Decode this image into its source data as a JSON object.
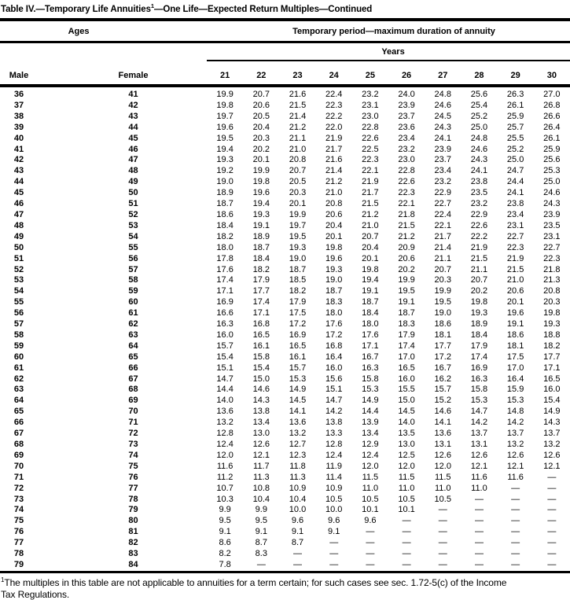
{
  "title": {
    "pre": "Table IV.—Temporary Life Annuities",
    "sup": "1",
    "post": "—One Life—Expected Return Multiples—Continued"
  },
  "header": {
    "ages_label": "Ages",
    "temporary_label": "Temporary period—maximum duration of annuity",
    "years_label": "Years",
    "male_label": "Male",
    "female_label": "Female",
    "year_columns": [
      "21",
      "22",
      "23",
      "24",
      "25",
      "26",
      "27",
      "28",
      "29",
      "30"
    ]
  },
  "rows": [
    {
      "male": "36",
      "female": "41",
      "values": [
        "19.9",
        "20.7",
        "21.6",
        "22.4",
        "23.2",
        "24.0",
        "24.8",
        "25.6",
        "26.3",
        "27.0"
      ]
    },
    {
      "male": "37",
      "female": "42",
      "values": [
        "19.8",
        "20.6",
        "21.5",
        "22.3",
        "23.1",
        "23.9",
        "24.6",
        "25.4",
        "26.1",
        "26.8"
      ]
    },
    {
      "male": "38",
      "female": "43",
      "values": [
        "19.7",
        "20.5",
        "21.4",
        "22.2",
        "23.0",
        "23.7",
        "24.5",
        "25.2",
        "25.9",
        "26.6"
      ]
    },
    {
      "male": "39",
      "female": "44",
      "values": [
        "19.6",
        "20.4",
        "21.2",
        "22.0",
        "22.8",
        "23.6",
        "24.3",
        "25.0",
        "25.7",
        "26.4"
      ]
    },
    {
      "male": "40",
      "female": "45",
      "values": [
        "19.5",
        "20.3",
        "21.1",
        "21.9",
        "22.6",
        "23.4",
        "24.1",
        "24.8",
        "25.5",
        "26.1"
      ]
    },
    {
      "male": "41",
      "female": "46",
      "values": [
        "19.4",
        "20.2",
        "21.0",
        "21.7",
        "22.5",
        "23.2",
        "23.9",
        "24.6",
        "25.2",
        "25.9"
      ]
    },
    {
      "male": "42",
      "female": "47",
      "values": [
        "19.3",
        "20.1",
        "20.8",
        "21.6",
        "22.3",
        "23.0",
        "23.7",
        "24.3",
        "25.0",
        "25.6"
      ]
    },
    {
      "male": "43",
      "female": "48",
      "values": [
        "19.2",
        "19.9",
        "20.7",
        "21.4",
        "22.1",
        "22.8",
        "23.4",
        "24.1",
        "24.7",
        "25.3"
      ]
    },
    {
      "male": "44",
      "female": "49",
      "values": [
        "19.0",
        "19.8",
        "20.5",
        "21.2",
        "21.9",
        "22.6",
        "23.2",
        "23.8",
        "24.4",
        "25.0"
      ]
    },
    {
      "male": "45",
      "female": "50",
      "values": [
        "18.9",
        "19.6",
        "20.3",
        "21.0",
        "21.7",
        "22.3",
        "22.9",
        "23.5",
        "24.1",
        "24.6"
      ]
    },
    {
      "male": "46",
      "female": "51",
      "values": [
        "18.7",
        "19.4",
        "20.1",
        "20.8",
        "21.5",
        "22.1",
        "22.7",
        "23.2",
        "23.8",
        "24.3"
      ]
    },
    {
      "male": "47",
      "female": "52",
      "values": [
        "18.6",
        "19.3",
        "19.9",
        "20.6",
        "21.2",
        "21.8",
        "22.4",
        "22.9",
        "23.4",
        "23.9"
      ]
    },
    {
      "male": "48",
      "female": "53",
      "values": [
        "18.4",
        "19.1",
        "19.7",
        "20.4",
        "21.0",
        "21.5",
        "22.1",
        "22.6",
        "23.1",
        "23.5"
      ]
    },
    {
      "male": "49",
      "female": "54",
      "values": [
        "18.2",
        "18.9",
        "19.5",
        "20.1",
        "20.7",
        "21.2",
        "21.7",
        "22.2",
        "22.7",
        "23.1"
      ]
    },
    {
      "male": "50",
      "female": "55",
      "values": [
        "18.0",
        "18.7",
        "19.3",
        "19.8",
        "20.4",
        "20.9",
        "21.4",
        "21.9",
        "22.3",
        "22.7"
      ]
    },
    {
      "male": "51",
      "female": "56",
      "values": [
        "17.8",
        "18.4",
        "19.0",
        "19.6",
        "20.1",
        "20.6",
        "21.1",
        "21.5",
        "21.9",
        "22.3"
      ]
    },
    {
      "male": "52",
      "female": "57",
      "values": [
        "17.6",
        "18.2",
        "18.7",
        "19.3",
        "19.8",
        "20.2",
        "20.7",
        "21.1",
        "21.5",
        "21.8"
      ]
    },
    {
      "male": "53",
      "female": "58",
      "values": [
        "17.4",
        "17.9",
        "18.5",
        "19.0",
        "19.4",
        "19.9",
        "20.3",
        "20.7",
        "21.0",
        "21.3"
      ]
    },
    {
      "male": "54",
      "female": "59",
      "values": [
        "17.1",
        "17.7",
        "18.2",
        "18.7",
        "19.1",
        "19.5",
        "19.9",
        "20.2",
        "20.6",
        "20.8"
      ]
    },
    {
      "male": "55",
      "female": "60",
      "values": [
        "16.9",
        "17.4",
        "17.9",
        "18.3",
        "18.7",
        "19.1",
        "19.5",
        "19.8",
        "20.1",
        "20.3"
      ]
    },
    {
      "male": "56",
      "female": "61",
      "values": [
        "16.6",
        "17.1",
        "17.5",
        "18.0",
        "18.4",
        "18.7",
        "19.0",
        "19.3",
        "19.6",
        "19.8"
      ]
    },
    {
      "male": "57",
      "female": "62",
      "values": [
        "16.3",
        "16.8",
        "17.2",
        "17.6",
        "18.0",
        "18.3",
        "18.6",
        "18.9",
        "19.1",
        "19.3"
      ]
    },
    {
      "male": "58",
      "female": "63",
      "values": [
        "16.0",
        "16.5",
        "16.9",
        "17.2",
        "17.6",
        "17.9",
        "18.1",
        "18.4",
        "18.6",
        "18.8"
      ]
    },
    {
      "male": "59",
      "female": "64",
      "values": [
        "15.7",
        "16.1",
        "16.5",
        "16.8",
        "17.1",
        "17.4",
        "17.7",
        "17.9",
        "18.1",
        "18.2"
      ]
    },
    {
      "male": "60",
      "female": "65",
      "values": [
        "15.4",
        "15.8",
        "16.1",
        "16.4",
        "16.7",
        "17.0",
        "17.2",
        "17.4",
        "17.5",
        "17.7"
      ]
    },
    {
      "male": "61",
      "female": "66",
      "values": [
        "15.1",
        "15.4",
        "15.7",
        "16.0",
        "16.3",
        "16.5",
        "16.7",
        "16.9",
        "17.0",
        "17.1"
      ]
    },
    {
      "male": "62",
      "female": "67",
      "values": [
        "14.7",
        "15.0",
        "15.3",
        "15.6",
        "15.8",
        "16.0",
        "16.2",
        "16.3",
        "16.4",
        "16.5"
      ]
    },
    {
      "male": "63",
      "female": "68",
      "values": [
        "14.4",
        "14.6",
        "14.9",
        "15.1",
        "15.3",
        "15.5",
        "15.7",
        "15.8",
        "15.9",
        "16.0"
      ]
    },
    {
      "male": "64",
      "female": "69",
      "values": [
        "14.0",
        "14.3",
        "14.5",
        "14.7",
        "14.9",
        "15.0",
        "15.2",
        "15.3",
        "15.3",
        "15.4"
      ]
    },
    {
      "male": "65",
      "female": "70",
      "values": [
        "13.6",
        "13.8",
        "14.1",
        "14.2",
        "14.4",
        "14.5",
        "14.6",
        "14.7",
        "14.8",
        "14.9"
      ]
    },
    {
      "male": "66",
      "female": "71",
      "values": [
        "13.2",
        "13.4",
        "13.6",
        "13.8",
        "13.9",
        "14.0",
        "14.1",
        "14.2",
        "14.2",
        "14.3"
      ]
    },
    {
      "male": "67",
      "female": "72",
      "values": [
        "12.8",
        "13.0",
        "13.2",
        "13.3",
        "13.4",
        "13.5",
        "13.6",
        "13.7",
        "13.7",
        "13.7"
      ]
    },
    {
      "male": "68",
      "female": "73",
      "values": [
        "12.4",
        "12.6",
        "12.7",
        "12.8",
        "12.9",
        "13.0",
        "13.1",
        "13.1",
        "13.2",
        "13.2"
      ]
    },
    {
      "male": "69",
      "female": "74",
      "values": [
        "12.0",
        "12.1",
        "12.3",
        "12.4",
        "12.4",
        "12.5",
        "12.6",
        "12.6",
        "12.6",
        "12.6"
      ]
    },
    {
      "male": "70",
      "female": "75",
      "values": [
        "11.6",
        "11.7",
        "11.8",
        "11.9",
        "12.0",
        "12.0",
        "12.0",
        "12.1",
        "12.1",
        "12.1"
      ]
    },
    {
      "male": "71",
      "female": "76",
      "values": [
        "11.2",
        "11.3",
        "11.3",
        "11.4",
        "11.5",
        "11.5",
        "11.5",
        "11.6",
        "11.6",
        "—"
      ]
    },
    {
      "male": "72",
      "female": "77",
      "values": [
        "10.7",
        "10.8",
        "10.9",
        "10.9",
        "11.0",
        "11.0",
        "11.0",
        "11.0",
        "—",
        "—"
      ]
    },
    {
      "male": "73",
      "female": "78",
      "values": [
        "10.3",
        "10.4",
        "10.4",
        "10.5",
        "10.5",
        "10.5",
        "10.5",
        "—",
        "—",
        "—"
      ]
    },
    {
      "male": "74",
      "female": "79",
      "values": [
        "9.9",
        "9.9",
        "10.0",
        "10.0",
        "10.1",
        "10.1",
        "—",
        "—",
        "—",
        "—"
      ]
    },
    {
      "male": "75",
      "female": "80",
      "values": [
        "9.5",
        "9.5",
        "9.6",
        "9.6",
        "9.6",
        "—",
        "—",
        "—",
        "—",
        "—"
      ]
    },
    {
      "male": "76",
      "female": "81",
      "values": [
        "9.1",
        "9.1",
        "9.1",
        "9.1",
        "—",
        "—",
        "—",
        "—",
        "—",
        "—"
      ]
    },
    {
      "male": "77",
      "female": "82",
      "values": [
        "8.6",
        "8.7",
        "8.7",
        "—",
        "—",
        "—",
        "—",
        "—",
        "—",
        "—"
      ]
    },
    {
      "male": "78",
      "female": "83",
      "values": [
        "8.2",
        "8.3",
        "—",
        "—",
        "—",
        "—",
        "—",
        "—",
        "—",
        "—"
      ]
    },
    {
      "male": "79",
      "female": "84",
      "values": [
        "7.8",
        "—",
        "—",
        "—",
        "—",
        "—",
        "—",
        "—",
        "—",
        "—"
      ]
    }
  ],
  "footnote": {
    "marker": "1",
    "lines": [
      "The multiples in this table are not applicable to annuities for a term certain; for such cases see sec. 1.72-5(c) of the Income",
      "Tax Regulations."
    ]
  }
}
